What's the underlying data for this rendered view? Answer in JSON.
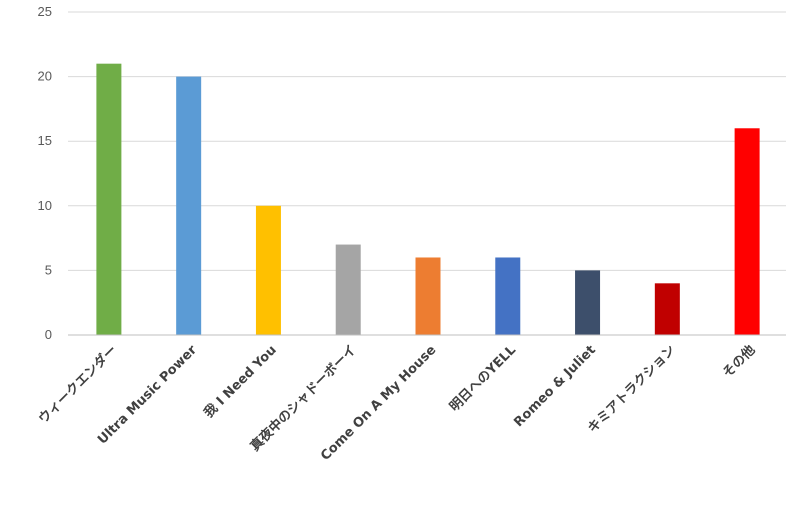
{
  "chart_data": {
    "type": "bar",
    "title": "",
    "xlabel": "",
    "ylabel": "",
    "categories": [
      "ウィークエンダー",
      "Ultra Music Power",
      "我 I Need You",
      "真夜中のシャドーボーイ",
      "Come On A My House",
      "明日へのYELL",
      "Romeo & Juliet",
      "キミアトラクション",
      "その他"
    ],
    "values": [
      21,
      20,
      10,
      7,
      6,
      6,
      5,
      4,
      16
    ],
    "colors": [
      "#70ad47",
      "#5b9bd5",
      "#ffc000",
      "#a5a5a5",
      "#ed7d31",
      "#4472c4",
      "#3d4f6b",
      "#c00000",
      "#ff0000"
    ],
    "ylim": [
      0,
      25
    ],
    "yticks": [
      "0",
      "5",
      "10",
      "15",
      "20",
      "25"
    ],
    "grid": true,
    "legend": "none"
  }
}
